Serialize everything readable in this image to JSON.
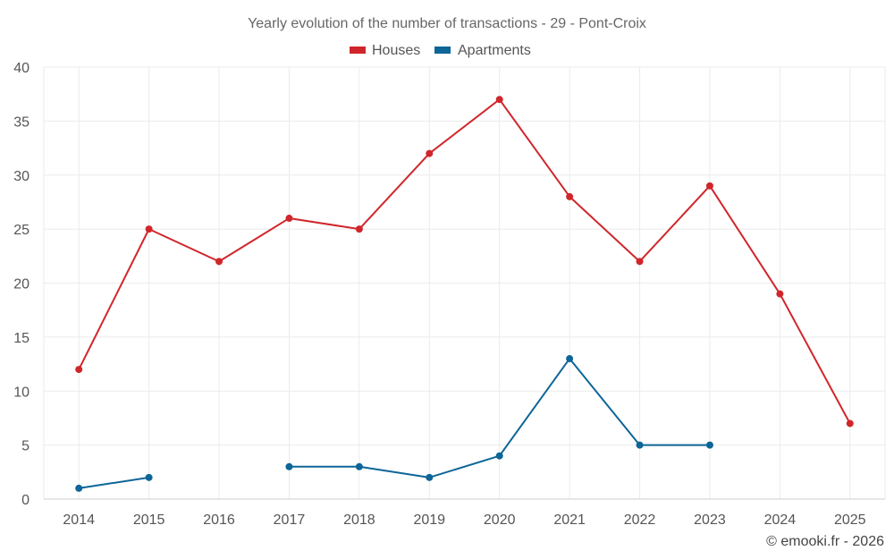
{
  "chart_data": {
    "type": "line",
    "title": "Yearly evolution of the number of transactions - 29 - Pont-Croix",
    "categories": [
      "2014",
      "2015",
      "2016",
      "2017",
      "2018",
      "2019",
      "2020",
      "2021",
      "2022",
      "2023",
      "2024",
      "2025"
    ],
    "series": [
      {
        "name": "Houses",
        "color": "#d0262b",
        "values": [
          12,
          25,
          22,
          26,
          25,
          32,
          37,
          28,
          22,
          29,
          19,
          7
        ]
      },
      {
        "name": "Apartments",
        "color": "#0e6598",
        "values": [
          1,
          2,
          null,
          3,
          3,
          2,
          4,
          13,
          5,
          5,
          null,
          null
        ]
      }
    ],
    "y_ticks": [
      "0",
      "5",
      "10",
      "15",
      "20",
      "25",
      "30",
      "35",
      "40"
    ],
    "ylim": [
      0,
      40
    ],
    "xlabel": "",
    "ylabel": "",
    "grid": true,
    "legend_position": "top-center"
  },
  "credit": "© emooki.fr - 2026"
}
